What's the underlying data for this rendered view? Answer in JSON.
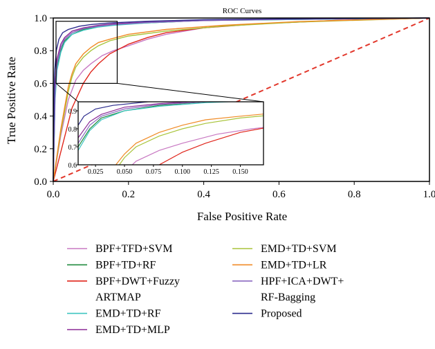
{
  "chart_data": {
    "type": "line",
    "title": "ROC Curves",
    "xlabel": "False Positive Rate",
    "ylabel": "True Positive Rate",
    "xlim": [
      0,
      1
    ],
    "ylim": [
      0,
      1
    ],
    "xticks": [
      "0.0",
      "0.2",
      "0.4",
      "0.6",
      "0.8",
      "1.0"
    ],
    "yticks": [
      "0.0",
      "0.2",
      "0.4",
      "0.6",
      "0.8",
      "1.0"
    ],
    "grid": false,
    "legend_position": "bottom",
    "diagonal_color": "#e2372b",
    "series": [
      {
        "name": "BPF+TFD+SVM",
        "color": "#c878c2",
        "points": [
          [
            0,
            0
          ],
          [
            0.02,
            0.28
          ],
          [
            0.04,
            0.5
          ],
          [
            0.06,
            0.62
          ],
          [
            0.08,
            0.68
          ],
          [
            0.1,
            0.72
          ],
          [
            0.13,
            0.77
          ],
          [
            0.16,
            0.8
          ],
          [
            0.2,
            0.83
          ],
          [
            0.25,
            0.87
          ],
          [
            0.3,
            0.9
          ],
          [
            0.4,
            0.94
          ],
          [
            0.5,
            0.96
          ],
          [
            0.7,
            0.98
          ],
          [
            1,
            1
          ]
        ]
      },
      {
        "name": "BPF+TD+RF",
        "color": "#1f8a3c",
        "points": [
          [
            0,
            0
          ],
          [
            0.005,
            0.55
          ],
          [
            0.01,
            0.7
          ],
          [
            0.02,
            0.8
          ],
          [
            0.03,
            0.86
          ],
          [
            0.05,
            0.9
          ],
          [
            0.08,
            0.93
          ],
          [
            0.12,
            0.95
          ],
          [
            0.16,
            0.96
          ],
          [
            0.25,
            0.97
          ],
          [
            0.4,
            0.985
          ],
          [
            0.6,
            0.99
          ],
          [
            1,
            1
          ]
        ]
      },
      {
        "name": "BPF+DWT+Fuzzy ARTMAP",
        "color": "#e0251b",
        "points": [
          [
            0,
            0
          ],
          [
            0.05,
            0.45
          ],
          [
            0.08,
            0.6
          ],
          [
            0.1,
            0.67
          ],
          [
            0.12,
            0.72
          ],
          [
            0.15,
            0.78
          ],
          [
            0.2,
            0.84
          ],
          [
            0.25,
            0.88
          ],
          [
            0.3,
            0.91
          ],
          [
            0.4,
            0.94
          ],
          [
            0.55,
            0.965
          ],
          [
            0.75,
            0.985
          ],
          [
            1,
            1
          ]
        ]
      },
      {
        "name": "EMD+TD+RF",
        "color": "#3cc4c0",
        "points": [
          [
            0,
            0
          ],
          [
            0.005,
            0.5
          ],
          [
            0.01,
            0.68
          ],
          [
            0.02,
            0.79
          ],
          [
            0.03,
            0.85
          ],
          [
            0.05,
            0.9
          ],
          [
            0.08,
            0.925
          ],
          [
            0.12,
            0.945
          ],
          [
            0.16,
            0.955
          ],
          [
            0.25,
            0.97
          ],
          [
            0.4,
            0.985
          ],
          [
            0.6,
            0.99
          ],
          [
            1,
            1
          ]
        ]
      },
      {
        "name": "EMD+TD+MLP",
        "color": "#8c2a96",
        "points": [
          [
            0,
            0
          ],
          [
            0.005,
            0.6
          ],
          [
            0.01,
            0.75
          ],
          [
            0.02,
            0.84
          ],
          [
            0.03,
            0.88
          ],
          [
            0.05,
            0.92
          ],
          [
            0.08,
            0.94
          ],
          [
            0.12,
            0.955
          ],
          [
            0.16,
            0.965
          ],
          [
            0.25,
            0.975
          ],
          [
            0.4,
            0.985
          ],
          [
            0.6,
            0.992
          ],
          [
            1,
            1
          ]
        ]
      },
      {
        "name": "EMD+TD+SVM",
        "color": "#a8c43a",
        "points": [
          [
            0,
            0
          ],
          [
            0.02,
            0.3
          ],
          [
            0.04,
            0.55
          ],
          [
            0.05,
            0.64
          ],
          [
            0.06,
            0.7
          ],
          [
            0.08,
            0.76
          ],
          [
            0.1,
            0.8
          ],
          [
            0.12,
            0.83
          ],
          [
            0.15,
            0.86
          ],
          [
            0.2,
            0.89
          ],
          [
            0.3,
            0.92
          ],
          [
            0.45,
            0.95
          ],
          [
            0.65,
            0.975
          ],
          [
            1,
            1
          ]
        ]
      },
      {
        "name": "EMD+TD+LR",
        "color": "#f08a24",
        "points": [
          [
            0,
            0
          ],
          [
            0.02,
            0.32
          ],
          [
            0.04,
            0.58
          ],
          [
            0.05,
            0.66
          ],
          [
            0.06,
            0.72
          ],
          [
            0.08,
            0.78
          ],
          [
            0.1,
            0.82
          ],
          [
            0.12,
            0.85
          ],
          [
            0.15,
            0.87
          ],
          [
            0.2,
            0.9
          ],
          [
            0.3,
            0.93
          ],
          [
            0.45,
            0.955
          ],
          [
            0.65,
            0.978
          ],
          [
            1,
            1
          ]
        ]
      },
      {
        "name": "HPF+ICA+DWT+ RF-Bagging",
        "color": "#8a68c0",
        "points": [
          [
            0,
            0
          ],
          [
            0.005,
            0.55
          ],
          [
            0.01,
            0.72
          ],
          [
            0.02,
            0.82
          ],
          [
            0.03,
            0.87
          ],
          [
            0.05,
            0.91
          ],
          [
            0.08,
            0.935
          ],
          [
            0.12,
            0.95
          ],
          [
            0.16,
            0.96
          ],
          [
            0.25,
            0.972
          ],
          [
            0.4,
            0.984
          ],
          [
            0.6,
            0.991
          ],
          [
            1,
            1
          ]
        ]
      },
      {
        "name": "Proposed",
        "color": "#2a2a8c",
        "points": [
          [
            0,
            0
          ],
          [
            0.003,
            0.65
          ],
          [
            0.008,
            0.8
          ],
          [
            0.015,
            0.87
          ],
          [
            0.025,
            0.91
          ],
          [
            0.04,
            0.93
          ],
          [
            0.07,
            0.95
          ],
          [
            0.1,
            0.96
          ],
          [
            0.15,
            0.97
          ],
          [
            0.25,
            0.98
          ],
          [
            0.4,
            0.99
          ],
          [
            0.6,
            0.995
          ],
          [
            1,
            1
          ]
        ]
      }
    ],
    "inset": {
      "xlim": [
        0.01,
        0.17
      ],
      "ylim": [
        0.6,
        0.95
      ],
      "xticks": [
        "0.025",
        "0.050",
        "0.075",
        "0.100",
        "0.125",
        "0.150"
      ],
      "yticks": [
        "0.6",
        "0.7",
        "0.8",
        "0.9"
      ]
    }
  },
  "legend": {
    "left": [
      {
        "lines": [
          "BPF+TFD+SVM"
        ],
        "color": "#c878c2"
      },
      {
        "lines": [
          "BPF+TD+RF"
        ],
        "color": "#1f8a3c"
      },
      {
        "lines": [
          "BPF+DWT+Fuzzy",
          "ARTMAP"
        ],
        "color": "#e0251b"
      },
      {
        "lines": [
          "EMD+TD+RF"
        ],
        "color": "#3cc4c0"
      },
      {
        "lines": [
          "EMD+TD+MLP"
        ],
        "color": "#8c2a96"
      }
    ],
    "right": [
      {
        "lines": [
          "EMD+TD+SVM"
        ],
        "color": "#a8c43a"
      },
      {
        "lines": [
          "EMD+TD+LR"
        ],
        "color": "#f08a24"
      },
      {
        "lines": [
          "HPF+ICA+DWT+",
          "RF-Bagging"
        ],
        "color": "#8a68c0"
      },
      {
        "lines": [
          "Proposed"
        ],
        "color": "#2a2a8c"
      }
    ]
  }
}
